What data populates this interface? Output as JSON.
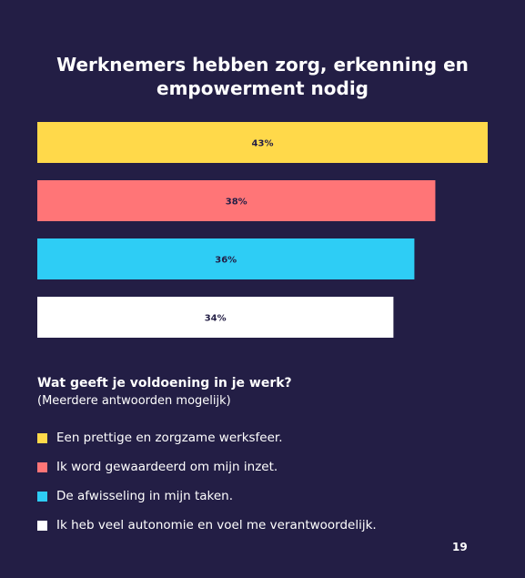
{
  "page": {
    "title_lines": [
      "Werknemers hebben zorg, erkenning en",
      "empowerment nodig"
    ],
    "question": "Wat geeft je voldoening in je werk?",
    "note": "(Meerdere antwoorden mogelijk)",
    "page_number": "19",
    "background_color": "#231e45"
  },
  "chart_data": {
    "type": "bar",
    "orientation": "horizontal",
    "title": "Werknemers hebben zorg, erkenning en empowerment nodig",
    "categories": [
      "Een prettige en zorgzame werksfeer.",
      "Ik word gewaardeerd om mijn inzet.",
      "De afwisseling in mijn taken.",
      "Ik heb veel autonomie en voel me verantwoordelijk."
    ],
    "values": [
      43,
      38,
      36,
      34
    ],
    "value_labels": [
      "43%",
      "38%",
      "36%",
      "34%"
    ],
    "colors": [
      "#ffd94a",
      "#ff7577",
      "#2ecdf5",
      "#ffffff"
    ],
    "xlim": [
      0,
      43
    ],
    "grid": false,
    "legend_position": "bottom"
  }
}
